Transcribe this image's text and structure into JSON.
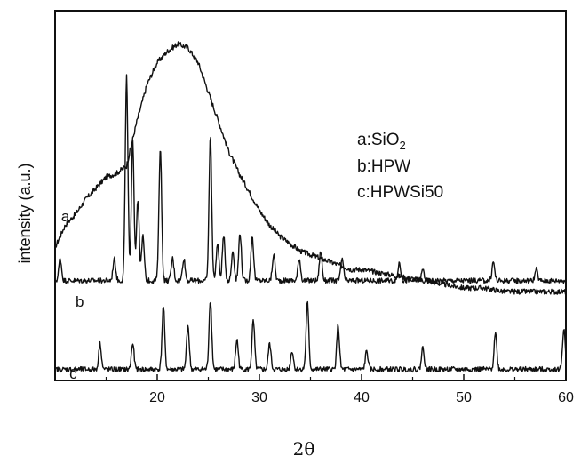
{
  "chart_data": {
    "type": "line",
    "title": "",
    "xlabel": "2θ",
    "ylabel": "intensity (a.u.)",
    "xlim": [
      10,
      60
    ],
    "xticks": [
      20,
      30,
      40,
      50,
      60
    ],
    "y_ticks_shown": false,
    "grid": false,
    "legend": {
      "placement": "top-right",
      "entries": [
        {
          "prefix": "a:SiO",
          "sub": "2"
        },
        {
          "prefix": "b:HPW",
          "sub": ""
        },
        {
          "prefix": "c:HPWSi50",
          "sub": ""
        }
      ]
    },
    "series": [
      {
        "name": "a",
        "baseline": 0.22,
        "x": [
          10,
          11,
          12,
          13,
          14,
          15,
          16,
          17,
          18,
          19,
          20,
          21,
          22,
          23,
          24,
          25,
          26,
          27,
          28,
          29,
          30,
          31,
          32,
          33,
          34,
          35,
          36,
          37,
          38,
          39,
          40,
          42,
          44,
          46,
          48,
          50,
          52,
          54,
          56,
          58,
          60
        ],
        "y": [
          0.36,
          0.42,
          0.45,
          0.49,
          0.52,
          0.55,
          0.56,
          0.58,
          0.7,
          0.8,
          0.86,
          0.89,
          0.91,
          0.9,
          0.86,
          0.78,
          0.7,
          0.62,
          0.56,
          0.51,
          0.46,
          0.42,
          0.39,
          0.37,
          0.35,
          0.34,
          0.33,
          0.32,
          0.31,
          0.3,
          0.3,
          0.29,
          0.28,
          0.27,
          0.26,
          0.25,
          0.25,
          0.24,
          0.24,
          0.24,
          0.24
        ],
        "peaks": []
      },
      {
        "name": "b",
        "baseline": 0.27,
        "x": [
          10,
          60
        ],
        "y": [
          0.27,
          0.27
        ],
        "peaks": [
          [
            10.5,
            0.06
          ],
          [
            15.8,
            0.06
          ],
          [
            17.0,
            0.55
          ],
          [
            17.6,
            0.38
          ],
          [
            18.1,
            0.22
          ],
          [
            18.6,
            0.12
          ],
          [
            20.3,
            0.36
          ],
          [
            21.5,
            0.06
          ],
          [
            22.6,
            0.06
          ],
          [
            25.2,
            0.39
          ],
          [
            25.9,
            0.1
          ],
          [
            26.5,
            0.12
          ],
          [
            27.4,
            0.08
          ],
          [
            28.1,
            0.13
          ],
          [
            29.3,
            0.12
          ],
          [
            31.4,
            0.07
          ],
          [
            33.9,
            0.06
          ],
          [
            36.0,
            0.08
          ],
          [
            38.1,
            0.06
          ],
          [
            43.7,
            0.05
          ],
          [
            46.0,
            0.03
          ],
          [
            52.9,
            0.05
          ],
          [
            57.1,
            0.03
          ]
        ]
      },
      {
        "name": "c",
        "baseline": 0.03,
        "x": [
          10,
          60
        ],
        "y": [
          0.03,
          0.03
        ],
        "peaks": [
          [
            14.4,
            0.07
          ],
          [
            17.6,
            0.07
          ],
          [
            20.6,
            0.17
          ],
          [
            23.0,
            0.12
          ],
          [
            25.2,
            0.19
          ],
          [
            27.8,
            0.08
          ],
          [
            29.4,
            0.13
          ],
          [
            31.0,
            0.07
          ],
          [
            33.2,
            0.05
          ],
          [
            34.7,
            0.18
          ],
          [
            37.7,
            0.12
          ],
          [
            40.5,
            0.05
          ],
          [
            46.0,
            0.06
          ],
          [
            53.1,
            0.1
          ],
          [
            59.8,
            0.11
          ]
        ]
      }
    ]
  }
}
